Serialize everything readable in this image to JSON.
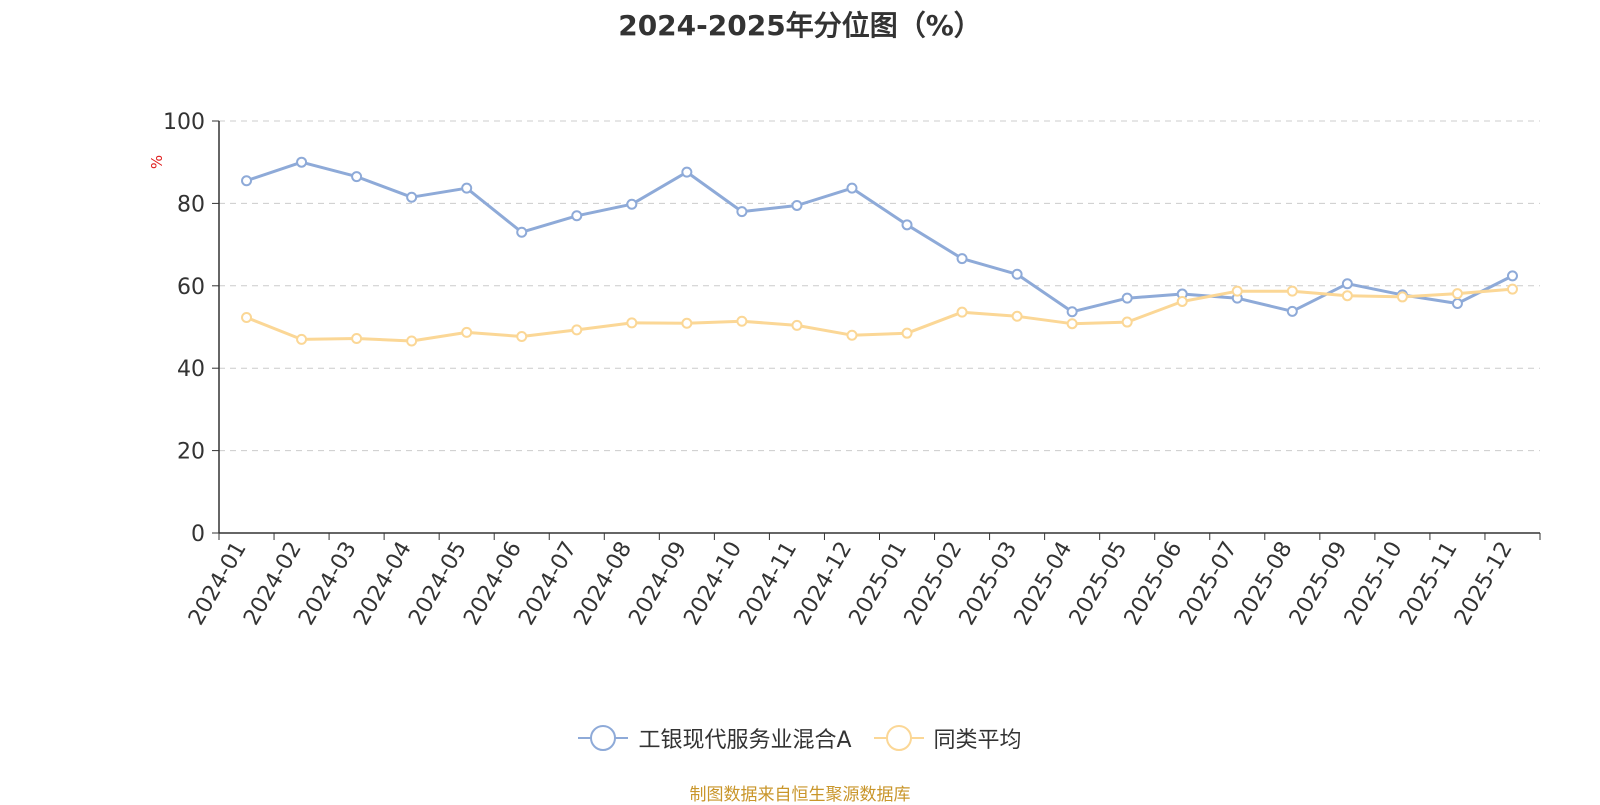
{
  "title": "2024-2025年分位图（%）",
  "source_note": "制图数据来自恒生聚源数据库",
  "chart_data": {
    "type": "line",
    "title": "2024-2025年分位图（%）",
    "ylabel": "%",
    "xlabel": "",
    "ylim": [
      0,
      100
    ],
    "yticks": [
      0,
      20,
      40,
      60,
      80,
      100
    ],
    "grid": true,
    "legend_position": "bottom",
    "categories": [
      "2024-01",
      "2024-02",
      "2024-03",
      "2024-04",
      "2024-05",
      "2024-06",
      "2024-07",
      "2024-08",
      "2024-09",
      "2024-10",
      "2024-11",
      "2024-12",
      "2025-01",
      "2025-02",
      "2025-03",
      "2025-04",
      "2025-05",
      "2025-06",
      "2025-07",
      "2025-08",
      "2025-09",
      "2025-10",
      "2025-11",
      "2025-12"
    ],
    "series": [
      {
        "name": "工银现代服务业混合A",
        "color": "#8eaad8",
        "values": [
          85.5,
          90,
          86.5,
          81.5,
          83.7,
          73,
          77,
          79.8,
          87.6,
          78,
          79.5,
          83.7,
          74.8,
          66.6,
          62.8,
          53.7,
          57,
          58,
          57,
          53.8,
          60.5,
          57.8,
          55.7,
          62.4
        ]
      },
      {
        "name": "同类平均",
        "color": "#fbd796",
        "values": [
          52.3,
          47,
          47.2,
          46.6,
          48.7,
          47.7,
          49.3,
          51,
          50.9,
          51.4,
          50.4,
          48,
          48.5,
          53.6,
          52.6,
          50.8,
          51.2,
          56.2,
          58.7,
          58.7,
          57.6,
          57.3,
          58.1,
          59.2
        ]
      }
    ]
  }
}
